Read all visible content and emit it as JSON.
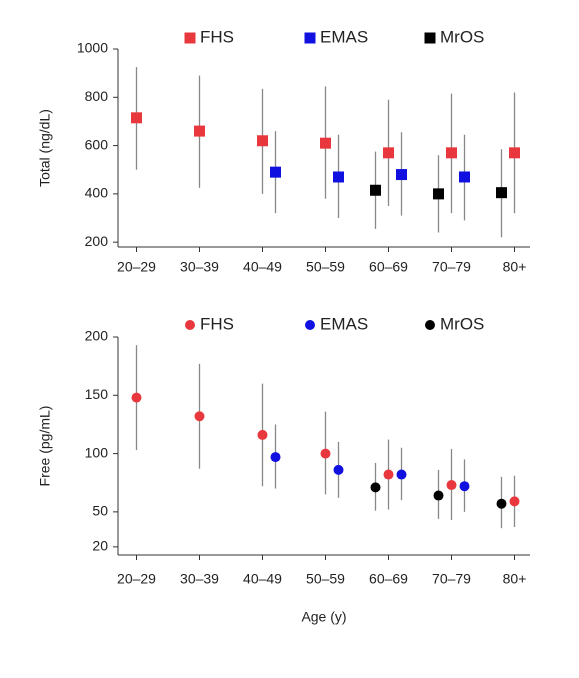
{
  "chart_data": [
    {
      "type": "scatter",
      "marker": "square",
      "y_label": "Total (ng/dL)",
      "categories": [
        "20–29",
        "30–39",
        "40–49",
        "50–59",
        "60–69",
        "70–79",
        "80+"
      ],
      "ylim": [
        180,
        1000
      ],
      "yticks": [
        200,
        400,
        600,
        800,
        1000
      ],
      "series": [
        {
          "name": "FHS",
          "color": "#e8383d",
          "values": [
            715,
            660,
            620,
            610,
            570,
            570,
            570
          ],
          "low": [
            500,
            425,
            400,
            380,
            350,
            320,
            320
          ],
          "high": [
            925,
            890,
            835,
            845,
            790,
            815,
            820
          ]
        },
        {
          "name": "EMAS",
          "color": "#1010e0",
          "values": [
            null,
            null,
            490,
            470,
            480,
            470,
            null
          ],
          "low": [
            null,
            null,
            320,
            300,
            310,
            290,
            null
          ],
          "high": [
            null,
            null,
            660,
            645,
            655,
            645,
            null
          ]
        },
        {
          "name": "MrOS",
          "color": "#000000",
          "values": [
            null,
            null,
            null,
            null,
            415,
            400,
            405
          ],
          "low": [
            null,
            null,
            null,
            null,
            255,
            240,
            220
          ],
          "high": [
            null,
            null,
            null,
            null,
            575,
            560,
            585
          ]
        }
      ]
    },
    {
      "type": "scatter",
      "marker": "circle",
      "y_label": "Free (pg/mL)",
      "x_label": "Age (y)",
      "categories": [
        "20–29",
        "30–39",
        "40–49",
        "50–59",
        "60–69",
        "70–79",
        "80+"
      ],
      "ylim": [
        13,
        200
      ],
      "yticks": [
        20,
        50,
        100,
        150,
        200
      ],
      "series": [
        {
          "name": "FHS",
          "color": "#e8383d",
          "values": [
            148,
            132,
            116,
            100,
            82,
            73,
            59
          ],
          "low": [
            103,
            87,
            72,
            65,
            52,
            43,
            37
          ],
          "high": [
            193,
            177,
            160,
            136,
            112,
            104,
            81
          ]
        },
        {
          "name": "EMAS",
          "color": "#1010e0",
          "values": [
            null,
            null,
            97,
            86,
            82,
            72,
            null
          ],
          "low": [
            null,
            null,
            70,
            62,
            60,
            50,
            null
          ],
          "high": [
            null,
            null,
            125,
            110,
            105,
            95,
            null
          ]
        },
        {
          "name": "MrOS",
          "color": "#000000",
          "values": [
            null,
            null,
            null,
            null,
            71,
            64,
            57
          ],
          "low": [
            null,
            null,
            null,
            null,
            51,
            44,
            36
          ],
          "high": [
            null,
            null,
            null,
            null,
            92,
            86,
            80
          ]
        }
      ]
    }
  ]
}
